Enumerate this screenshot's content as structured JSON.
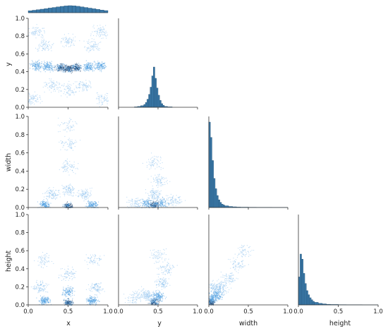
{
  "colors": {
    "hist_fill": "#3b79a8",
    "hist_edge": "#1f4e72",
    "scatter_light": "#8fc3ee",
    "scatter_mid": "#4a9de0",
    "scatter_dark": "#173a66",
    "axis": "#333333",
    "background": "#ffffff"
  },
  "chart_data": {
    "type": "scatter",
    "layout": "corner-pairplot",
    "variables": [
      "x",
      "y",
      "width",
      "height"
    ],
    "axis_range": [
      0.0,
      1.0
    ],
    "ticks": {
      "values": [
        0.0,
        0.5,
        1.0,
        0.2,
        0.4,
        0.6,
        0.8
      ],
      "x_labels": [
        "0.0",
        "0.5",
        "1.0"
      ],
      "y_labels": [
        "0.0",
        "0.2",
        "0.4",
        "0.6",
        "0.8",
        "1.0"
      ]
    },
    "diagonal_histograms": {
      "x": {
        "bin_edges": [
          0.0,
          0.05,
          0.1,
          0.15,
          0.2,
          0.25,
          0.3,
          0.35,
          0.4,
          0.45,
          0.5,
          0.55,
          0.6,
          0.65,
          0.7,
          0.75,
          0.8,
          0.85,
          0.9,
          0.95,
          1.0
        ],
        "relative_counts": [
          0.28,
          0.35,
          0.42,
          0.5,
          0.58,
          0.66,
          0.74,
          0.82,
          0.9,
          0.96,
          1.0,
          0.97,
          0.91,
          0.83,
          0.74,
          0.65,
          0.56,
          0.47,
          0.38,
          0.3
        ]
      },
      "y": {
        "bin_edges": [
          0.2,
          0.24,
          0.28,
          0.32,
          0.34,
          0.36,
          0.38,
          0.4,
          0.42,
          0.44,
          0.46,
          0.48,
          0.5,
          0.52,
          0.54,
          0.56,
          0.58,
          0.62,
          0.68
        ],
        "relative_counts": [
          0.01,
          0.02,
          0.04,
          0.07,
          0.12,
          0.2,
          0.32,
          0.5,
          0.78,
          1.0,
          0.72,
          0.48,
          0.3,
          0.17,
          0.09,
          0.05,
          0.02,
          0.01
        ]
      },
      "width": {
        "bin_edges": [
          0.0,
          0.02,
          0.04,
          0.06,
          0.08,
          0.1,
          0.12,
          0.14,
          0.16,
          0.18,
          0.2,
          0.25,
          0.3,
          0.35,
          0.4,
          0.5,
          0.6,
          0.8,
          1.0
        ],
        "relative_counts": [
          1.0,
          0.82,
          0.55,
          0.34,
          0.22,
          0.14,
          0.09,
          0.06,
          0.04,
          0.03,
          0.02,
          0.012,
          0.008,
          0.005,
          0.004,
          0.003,
          0.002,
          0.001
        ]
      },
      "height": {
        "bin_edges": [
          0.0,
          0.02,
          0.04,
          0.06,
          0.08,
          0.1,
          0.12,
          0.14,
          0.16,
          0.18,
          0.2,
          0.25,
          0.3,
          0.35,
          0.4,
          0.5,
          0.6,
          0.8,
          1.0
        ],
        "relative_counts": [
          0.55,
          1.0,
          0.9,
          0.62,
          0.42,
          0.28,
          0.2,
          0.14,
          0.1,
          0.07,
          0.05,
          0.03,
          0.02,
          0.012,
          0.008,
          0.005,
          0.003,
          0.001
        ]
      }
    },
    "scatter_panels": [
      {
        "x": "x",
        "y": "y",
        "density_points": [
          {
            "x": 0.1,
            "y": 0.47,
            "d": 0.7
          },
          {
            "x": 0.25,
            "y": 0.46,
            "d": 0.8
          },
          {
            "x": 0.4,
            "y": 0.45,
            "d": 1.0
          },
          {
            "x": 0.5,
            "y": 0.44,
            "d": 1.0
          },
          {
            "x": 0.6,
            "y": 0.45,
            "d": 1.0
          },
          {
            "x": 0.75,
            "y": 0.46,
            "d": 0.8
          },
          {
            "x": 0.9,
            "y": 0.47,
            "d": 0.7
          },
          {
            "x": 0.2,
            "y": 0.7,
            "d": 0.3
          },
          {
            "x": 0.5,
            "y": 0.75,
            "d": 0.25
          },
          {
            "x": 0.8,
            "y": 0.7,
            "d": 0.3
          },
          {
            "x": 0.1,
            "y": 0.85,
            "d": 0.3
          },
          {
            "x": 0.9,
            "y": 0.85,
            "d": 0.3
          },
          {
            "x": 0.3,
            "y": 0.25,
            "d": 0.3
          },
          {
            "x": 0.5,
            "y": 0.2,
            "d": 0.25
          },
          {
            "x": 0.7,
            "y": 0.25,
            "d": 0.3
          },
          {
            "x": 0.05,
            "y": 0.1,
            "d": 0.3
          },
          {
            "x": 0.95,
            "y": 0.1,
            "d": 0.3
          }
        ]
      },
      {
        "x": "x",
        "y": "width",
        "density_points": [
          {
            "x": 0.5,
            "y": 0.02,
            "d": 1.0
          },
          {
            "x": 0.2,
            "y": 0.03,
            "d": 0.9
          },
          {
            "x": 0.8,
            "y": 0.03,
            "d": 0.9
          },
          {
            "x": 0.5,
            "y": 0.2,
            "d": 0.5
          },
          {
            "x": 0.3,
            "y": 0.15,
            "d": 0.5
          },
          {
            "x": 0.7,
            "y": 0.15,
            "d": 0.5
          },
          {
            "x": 0.5,
            "y": 0.45,
            "d": 0.3
          },
          {
            "x": 0.5,
            "y": 0.7,
            "d": 0.2
          },
          {
            "x": 0.5,
            "y": 0.9,
            "d": 0.1
          }
        ]
      },
      {
        "x": "y",
        "y": "width",
        "density_points": [
          {
            "x": 0.45,
            "y": 0.03,
            "d": 1.0
          },
          {
            "x": 0.35,
            "y": 0.05,
            "d": 0.6
          },
          {
            "x": 0.55,
            "y": 0.05,
            "d": 0.6
          },
          {
            "x": 0.45,
            "y": 0.15,
            "d": 0.5
          },
          {
            "x": 0.5,
            "y": 0.3,
            "d": 0.3
          },
          {
            "x": 0.45,
            "y": 0.5,
            "d": 0.2
          },
          {
            "x": 0.2,
            "y": 0.05,
            "d": 0.3
          },
          {
            "x": 0.7,
            "y": 0.08,
            "d": 0.3
          }
        ]
      },
      {
        "x": "x",
        "y": "height",
        "density_points": [
          {
            "x": 0.5,
            "y": 0.03,
            "d": 1.0
          },
          {
            "x": 0.2,
            "y": 0.05,
            "d": 0.9
          },
          {
            "x": 0.8,
            "y": 0.05,
            "d": 0.9
          },
          {
            "x": 0.5,
            "y": 0.15,
            "d": 0.6
          },
          {
            "x": 0.15,
            "y": 0.2,
            "d": 0.5
          },
          {
            "x": 0.85,
            "y": 0.2,
            "d": 0.5
          },
          {
            "x": 0.5,
            "y": 0.35,
            "d": 0.3
          },
          {
            "x": 0.2,
            "y": 0.5,
            "d": 0.2
          },
          {
            "x": 0.8,
            "y": 0.5,
            "d": 0.2
          }
        ]
      },
      {
        "x": "y",
        "y": "height",
        "density_points": [
          {
            "x": 0.45,
            "y": 0.03,
            "d": 1.0
          },
          {
            "x": 0.5,
            "y": 0.1,
            "d": 0.8
          },
          {
            "x": 0.55,
            "y": 0.25,
            "d": 0.5
          },
          {
            "x": 0.4,
            "y": 0.1,
            "d": 0.5
          },
          {
            "x": 0.3,
            "y": 0.12,
            "d": 0.3
          },
          {
            "x": 0.6,
            "y": 0.4,
            "d": 0.3
          },
          {
            "x": 0.5,
            "y": 0.55,
            "d": 0.2
          },
          {
            "x": 0.2,
            "y": 0.08,
            "d": 0.2
          }
        ]
      },
      {
        "x": "width",
        "y": "height",
        "density_points": [
          {
            "x": 0.02,
            "y": 0.03,
            "d": 1.0
          },
          {
            "x": 0.05,
            "y": 0.08,
            "d": 0.8
          },
          {
            "x": 0.1,
            "y": 0.12,
            "d": 0.6
          },
          {
            "x": 0.15,
            "y": 0.2,
            "d": 0.5
          },
          {
            "x": 0.25,
            "y": 0.3,
            "d": 0.3
          },
          {
            "x": 0.35,
            "y": 0.45,
            "d": 0.2
          },
          {
            "x": 0.45,
            "y": 0.6,
            "d": 0.15
          },
          {
            "x": 0.05,
            "y": 0.2,
            "d": 0.4
          }
        ]
      }
    ],
    "axis_labels": {
      "x_bottom": [
        "x",
        "y",
        "width",
        "height"
      ],
      "y_left": [
        "y",
        "width",
        "height"
      ]
    }
  }
}
